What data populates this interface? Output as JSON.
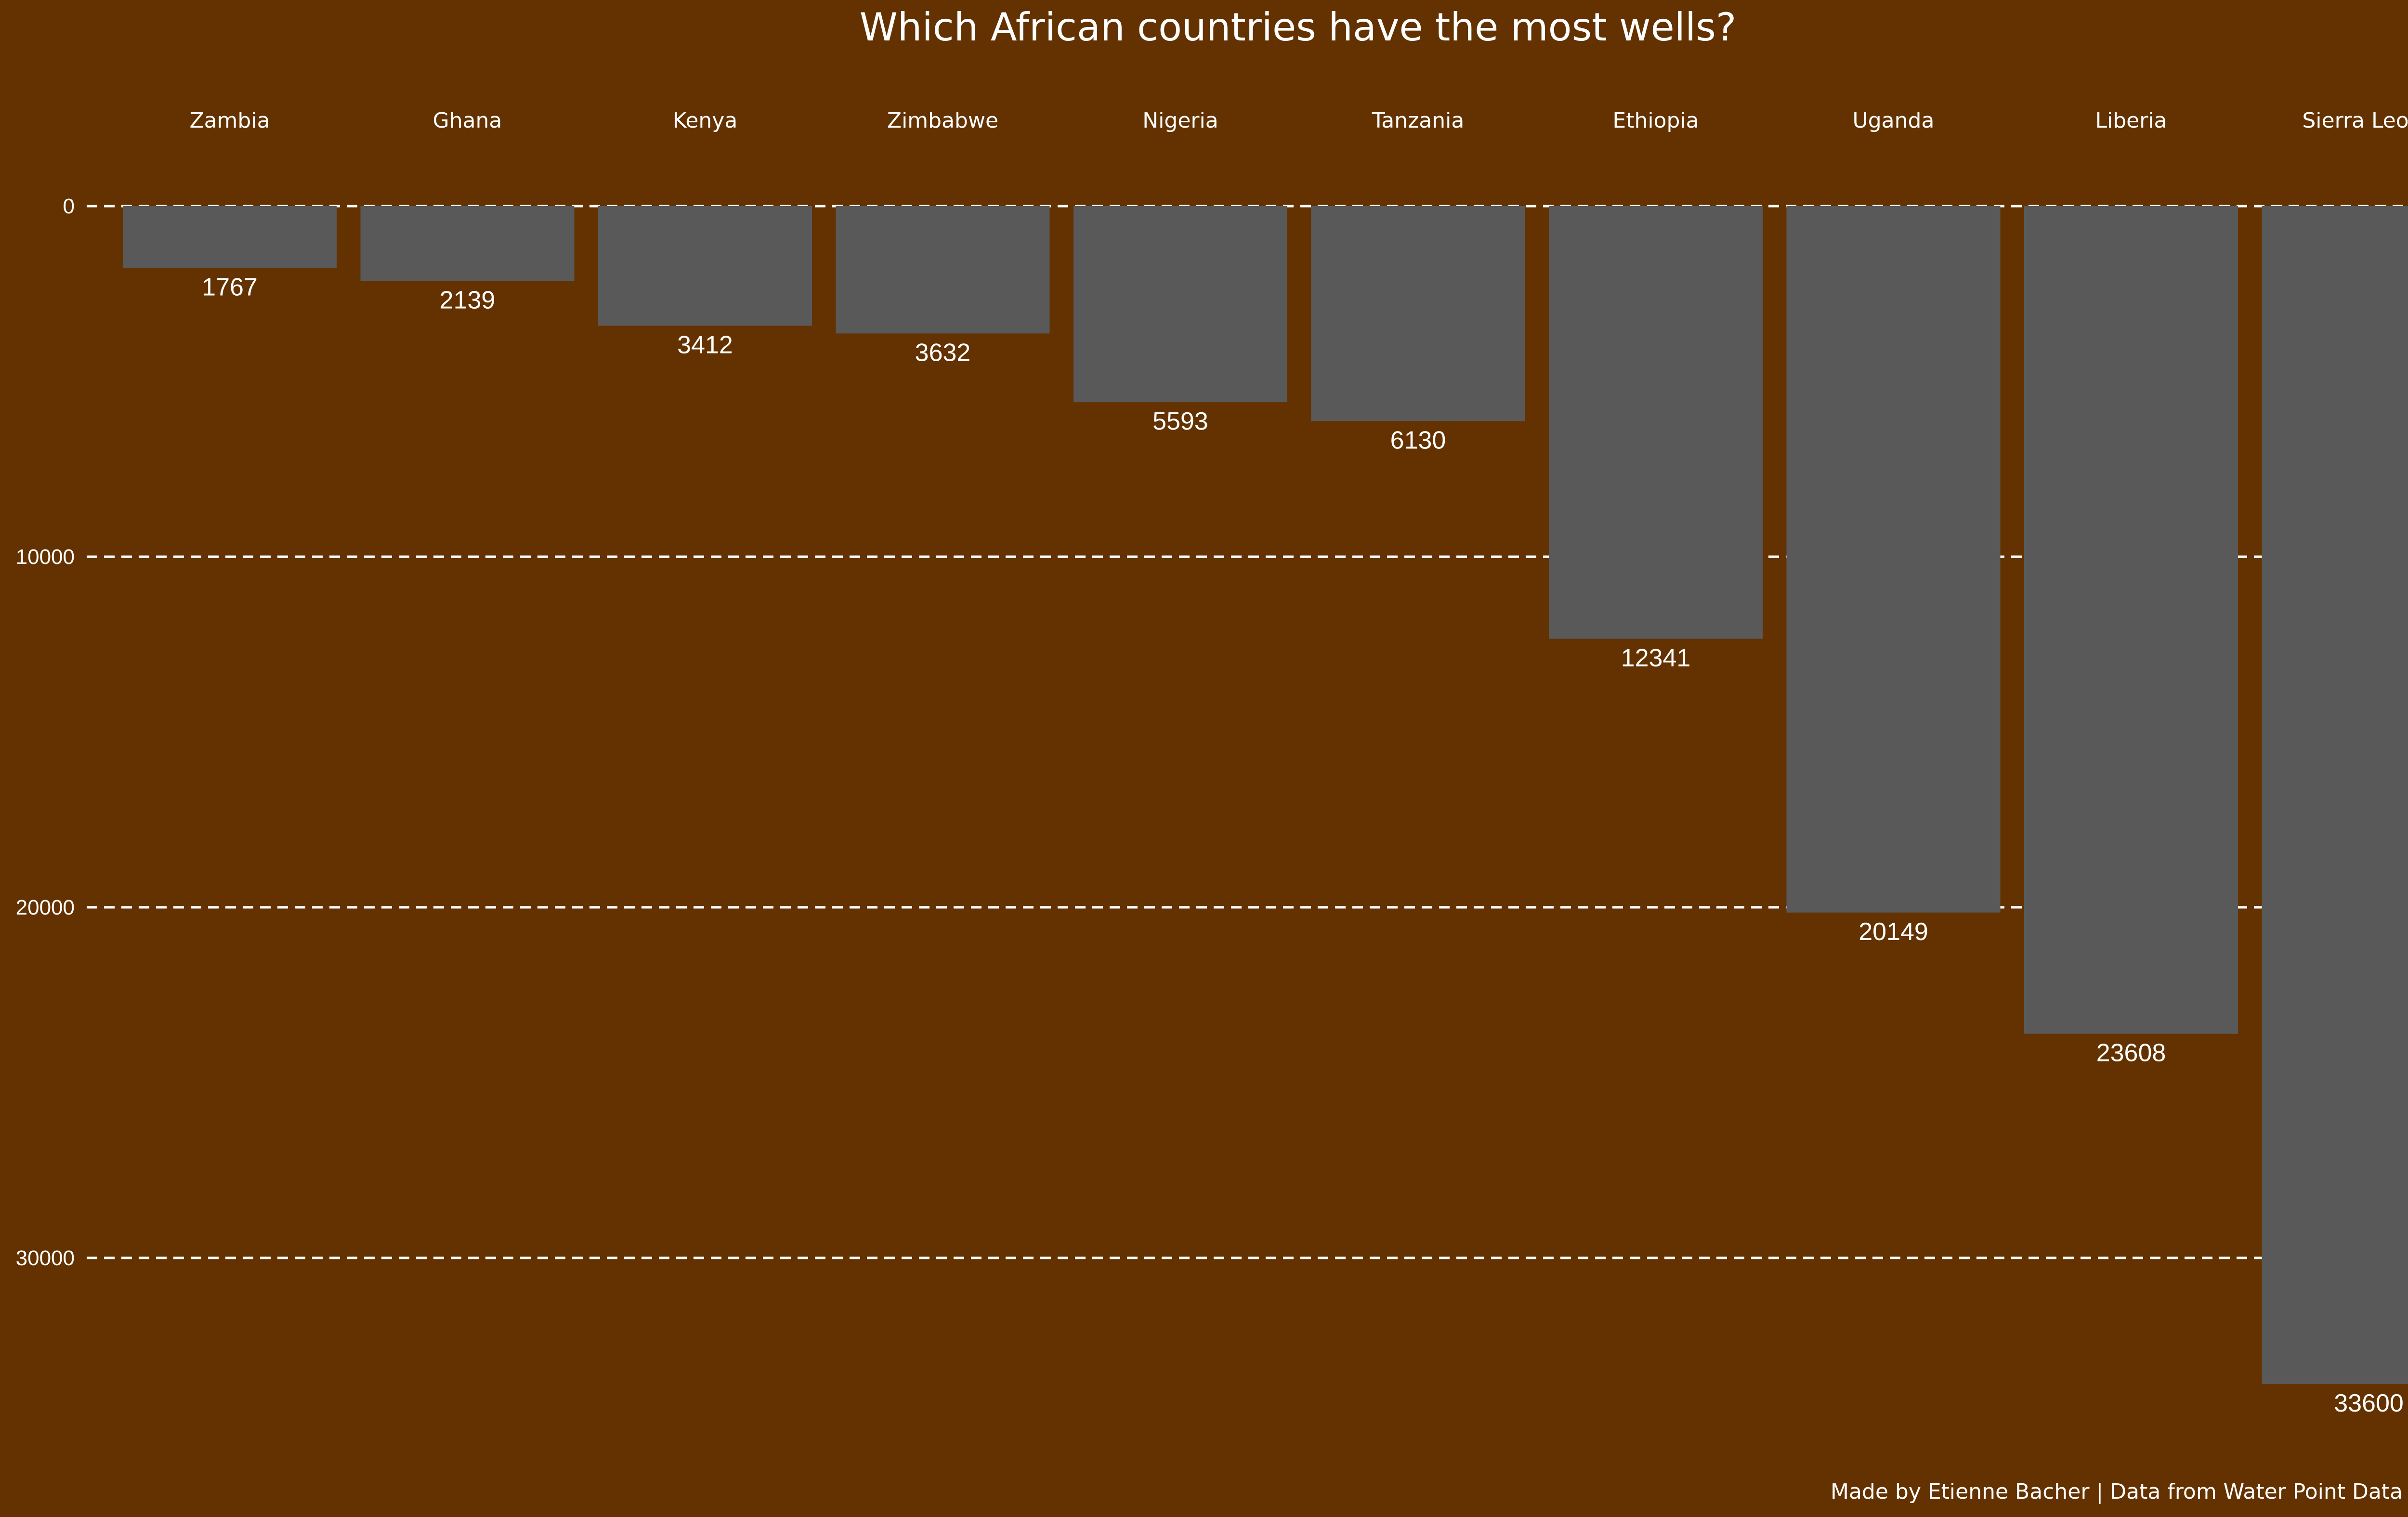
{
  "chart_data": {
    "type": "bar",
    "title": "Which African countries have the most wells?",
    "caption": "Made by Etienne Bacher | Data from Water Point Data Exchange",
    "categories": [
      "Zambia",
      "Ghana",
      "Kenya",
      "Zimbabwe",
      "Nigeria",
      "Tanzania",
      "Ethiopia",
      "Uganda",
      "Liberia",
      "Sierra Leone"
    ],
    "values": [
      1767,
      2139,
      3412,
      3632,
      5593,
      6130,
      12341,
      20149,
      23608,
      33600
    ],
    "value_labels": [
      "1767",
      "2139",
      "3412",
      "3632",
      "5593",
      "6130",
      "12341",
      "20149",
      "23608",
      "33600"
    ],
    "y_ticks": [
      0,
      10000,
      20000,
      30000
    ],
    "y_tick_labels": [
      "0",
      "10000",
      "20000",
      "30000"
    ],
    "ylim": [
      0,
      34000
    ],
    "y_reversed": true,
    "category_labels_position": "top",
    "grid": true,
    "xlabel": "",
    "ylabel": ""
  },
  "colors": {
    "background": "#633200",
    "bar": "#595959",
    "text": "#ffffff",
    "grid": "#ffffff"
  }
}
